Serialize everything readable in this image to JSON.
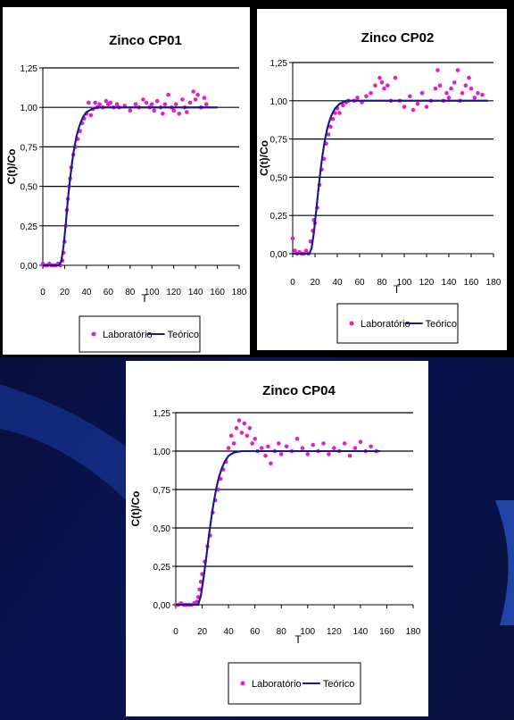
{
  "background": {
    "color": "#0a1450",
    "accent": "#1a3da8"
  },
  "colors": {
    "lab": "#e020c8",
    "theory": "#1a1a8c",
    "grid": "#000000"
  },
  "chart_data": [
    {
      "type": "scatter",
      "title": "Zinco CP01",
      "xlabel": "T",
      "ylabel": "C(t)/Co",
      "xlim": [
        0,
        180
      ],
      "ylim": [
        0,
        1.25
      ],
      "xticks": [
        "0",
        "20",
        "40",
        "60",
        "80",
        "100",
        "120",
        "140",
        "160",
        "180"
      ],
      "yticks": [
        "0,00",
        "0,25",
        "0,50",
        "0,75",
        "1,00",
        "1,25"
      ],
      "grid": true,
      "legend": "bottom",
      "series": [
        {
          "name": "Laboratório",
          "kind": "scatter",
          "points": [
            [
              0,
              0.01
            ],
            [
              2,
              0.0
            ],
            [
              4,
              0.0
            ],
            [
              6,
              0.01
            ],
            [
              8,
              0.0
            ],
            [
              10,
              0.0
            ],
            [
              12,
              0.0
            ],
            [
              14,
              0.01
            ],
            [
              16,
              0.0
            ],
            [
              18,
              0.03
            ],
            [
              19,
              0.08
            ],
            [
              20,
              0.15
            ],
            [
              21,
              0.25
            ],
            [
              22,
              0.35
            ],
            [
              23,
              0.42
            ],
            [
              24,
              0.5
            ],
            [
              25,
              0.55
            ],
            [
              26,
              0.62
            ],
            [
              28,
              0.7
            ],
            [
              30,
              0.75
            ],
            [
              32,
              0.8
            ],
            [
              34,
              0.85
            ],
            [
              36,
              0.9
            ],
            [
              38,
              0.93
            ],
            [
              40,
              0.96
            ],
            [
              42,
              1.03
            ],
            [
              44,
              0.95
            ],
            [
              46,
              0.99
            ],
            [
              48,
              1.03
            ],
            [
              50,
              1.0
            ],
            [
              52,
              1.02
            ],
            [
              55,
              1.0
            ],
            [
              58,
              1.04
            ],
            [
              60,
              1.02
            ],
            [
              62,
              1.03
            ],
            [
              65,
              1.0
            ],
            [
              68,
              1.02
            ],
            [
              70,
              1.0
            ],
            [
              75,
              1.01
            ],
            [
              80,
              0.98
            ],
            [
              85,
              1.02
            ],
            [
              88,
              1.0
            ],
            [
              92,
              1.05
            ],
            [
              95,
              1.03
            ],
            [
              98,
              1.0
            ],
            [
              100,
              1.02
            ],
            [
              102,
              0.98
            ],
            [
              105,
              1.04
            ],
            [
              108,
              1.0
            ],
            [
              110,
              0.96
            ],
            [
              112,
              1.02
            ],
            [
              115,
              1.08
            ],
            [
              118,
              1.0
            ],
            [
              120,
              0.98
            ],
            [
              122,
              1.02
            ],
            [
              125,
              0.96
            ],
            [
              128,
              1.05
            ],
            [
              130,
              1.0
            ],
            [
              132,
              0.97
            ],
            [
              135,
              1.03
            ],
            [
              138,
              1.1
            ],
            [
              140,
              1.05
            ],
            [
              142,
              1.08
            ],
            [
              145,
              1.0
            ],
            [
              148,
              1.06
            ],
            [
              150,
              1.02
            ]
          ]
        },
        {
          "name": "Teórico",
          "kind": "line",
          "points": [
            [
              0,
              0
            ],
            [
              15,
              0
            ],
            [
              17,
              0.03
            ],
            [
              19,
              0.12
            ],
            [
              21,
              0.26
            ],
            [
              23,
              0.42
            ],
            [
              25,
              0.55
            ],
            [
              27,
              0.66
            ],
            [
              29,
              0.75
            ],
            [
              31,
              0.82
            ],
            [
              33,
              0.87
            ],
            [
              35,
              0.91
            ],
            [
              37,
              0.94
            ],
            [
              40,
              0.97
            ],
            [
              45,
              0.99
            ],
            [
              50,
              1.0
            ],
            [
              160,
              1.0
            ]
          ]
        }
      ]
    },
    {
      "type": "scatter",
      "title": "Zinco CP02",
      "xlabel": "T",
      "ylabel": "C(t)/Co",
      "xlim": [
        0,
        180
      ],
      "ylim": [
        0,
        1.25
      ],
      "xticks": [
        "0",
        "20",
        "40",
        "60",
        "80",
        "100",
        "120",
        "140",
        "160",
        "180"
      ],
      "yticks": [
        "0,00",
        "0,25",
        "0,50",
        "0,75",
        "1,00",
        "1,25"
      ],
      "grid": true,
      "legend": "bottom",
      "series": [
        {
          "name": "Laboratório",
          "kind": "scatter",
          "points": [
            [
              0,
              0.1
            ],
            [
              2,
              0.02
            ],
            [
              4,
              0.0
            ],
            [
              6,
              0.01
            ],
            [
              8,
              0.0
            ],
            [
              10,
              0.0
            ],
            [
              12,
              0.02
            ],
            [
              14,
              0.0
            ],
            [
              16,
              0.08
            ],
            [
              18,
              0.15
            ],
            [
              19,
              0.22
            ],
            [
              20,
              0.2
            ],
            [
              22,
              0.3
            ],
            [
              24,
              0.45
            ],
            [
              26,
              0.55
            ],
            [
              28,
              0.62
            ],
            [
              30,
              0.72
            ],
            [
              32,
              0.78
            ],
            [
              34,
              0.83
            ],
            [
              36,
              0.88
            ],
            [
              38,
              0.92
            ],
            [
              40,
              0.95
            ],
            [
              42,
              0.92
            ],
            [
              45,
              0.97
            ],
            [
              48,
              0.99
            ],
            [
              50,
              1.0
            ],
            [
              55,
              1.0
            ],
            [
              58,
              1.02
            ],
            [
              62,
              0.99
            ],
            [
              66,
              1.03
            ],
            [
              70,
              1.05
            ],
            [
              74,
              1.1
            ],
            [
              78,
              1.15
            ],
            [
              80,
              1.12
            ],
            [
              82,
              1.08
            ],
            [
              85,
              1.1
            ],
            [
              88,
              1.0
            ],
            [
              92,
              1.15
            ],
            [
              96,
              1.0
            ],
            [
              100,
              0.96
            ],
            [
              105,
              1.03
            ],
            [
              108,
              0.94
            ],
            [
              112,
              0.98
            ],
            [
              116,
              1.05
            ],
            [
              120,
              0.96
            ],
            [
              124,
              1.0
            ],
            [
              128,
              1.08
            ],
            [
              130,
              1.2
            ],
            [
              132,
              1.1
            ],
            [
              135,
              1.0
            ],
            [
              138,
              1.05
            ],
            [
              140,
              1.02
            ],
            [
              142,
              1.08
            ],
            [
              145,
              1.12
            ],
            [
              148,
              1.2
            ],
            [
              150,
              1.0
            ],
            [
              152,
              1.05
            ],
            [
              155,
              1.1
            ],
            [
              158,
              1.15
            ],
            [
              160,
              1.08
            ],
            [
              163,
              1.02
            ],
            [
              166,
              1.05
            ],
            [
              170,
              1.04
            ]
          ]
        },
        {
          "name": "Teórico",
          "kind": "line",
          "points": [
            [
              0,
              0
            ],
            [
              15,
              0
            ],
            [
              17,
              0.04
            ],
            [
              19,
              0.14
            ],
            [
              21,
              0.28
            ],
            [
              23,
              0.42
            ],
            [
              25,
              0.55
            ],
            [
              27,
              0.66
            ],
            [
              29,
              0.75
            ],
            [
              31,
              0.82
            ],
            [
              33,
              0.87
            ],
            [
              35,
              0.91
            ],
            [
              38,
              0.95
            ],
            [
              42,
              0.98
            ],
            [
              48,
              1.0
            ],
            [
              55,
              1.0
            ],
            [
              175,
              1.0
            ]
          ]
        }
      ]
    },
    {
      "type": "scatter",
      "title": "Zinco CP04",
      "xlabel": "T",
      "ylabel": "C(t)/Co",
      "xlim": [
        0,
        180
      ],
      "ylim": [
        0,
        1.25
      ],
      "xticks": [
        "0",
        "20",
        "40",
        "60",
        "80",
        "100",
        "120",
        "140",
        "160",
        "180"
      ],
      "yticks": [
        "0,00",
        "0,25",
        "0,50",
        "0,75",
        "1,00",
        "1,25"
      ],
      "grid": true,
      "legend": "bottom",
      "series": [
        {
          "name": "Laboratório",
          "kind": "scatter",
          "points": [
            [
              0,
              0.0
            ],
            [
              2,
              0.0
            ],
            [
              4,
              0.01
            ],
            [
              6,
              0.0
            ],
            [
              8,
              0.0
            ],
            [
              10,
              0.0
            ],
            [
              12,
              0.0
            ],
            [
              14,
              0.01
            ],
            [
              16,
              0.02
            ],
            [
              17,
              0.05
            ],
            [
              18,
              0.1
            ],
            [
              19,
              0.15
            ],
            [
              20,
              0.2
            ],
            [
              22,
              0.28
            ],
            [
              24,
              0.38
            ],
            [
              26,
              0.45
            ],
            [
              28,
              0.6
            ],
            [
              30,
              0.68
            ],
            [
              32,
              0.75
            ],
            [
              34,
              0.82
            ],
            [
              36,
              0.88
            ],
            [
              38,
              0.93
            ],
            [
              40,
              1.02
            ],
            [
              42,
              1.1
            ],
            [
              44,
              1.05
            ],
            [
              46,
              1.15
            ],
            [
              48,
              1.2
            ],
            [
              50,
              1.12
            ],
            [
              52,
              1.18
            ],
            [
              54,
              1.1
            ],
            [
              56,
              1.15
            ],
            [
              58,
              1.05
            ],
            [
              60,
              1.08
            ],
            [
              62,
              1.0
            ],
            [
              65,
              1.02
            ],
            [
              68,
              0.97
            ],
            [
              70,
              1.03
            ],
            [
              72,
              0.92
            ],
            [
              75,
              1.0
            ],
            [
              78,
              1.05
            ],
            [
              80,
              0.98
            ],
            [
              84,
              1.03
            ],
            [
              88,
              1.0
            ],
            [
              92,
              1.08
            ],
            [
              96,
              1.02
            ],
            [
              100,
              0.98
            ],
            [
              104,
              1.04
            ],
            [
              108,
              1.0
            ],
            [
              112,
              1.05
            ],
            [
              116,
              0.98
            ],
            [
              120,
              1.02
            ],
            [
              124,
              1.0
            ],
            [
              128,
              1.05
            ],
            [
              132,
              0.97
            ],
            [
              136,
              1.02
            ],
            [
              140,
              1.06
            ],
            [
              144,
              1.0
            ],
            [
              148,
              1.03
            ],
            [
              152,
              1.0
            ]
          ]
        },
        {
          "name": "Teórico",
          "kind": "line",
          "points": [
            [
              0,
              0
            ],
            [
              17,
              0
            ],
            [
              19,
              0.06
            ],
            [
              21,
              0.17
            ],
            [
              23,
              0.3
            ],
            [
              25,
              0.44
            ],
            [
              27,
              0.57
            ],
            [
              29,
              0.68
            ],
            [
              31,
              0.77
            ],
            [
              33,
              0.84
            ],
            [
              35,
              0.89
            ],
            [
              37,
              0.93
            ],
            [
              40,
              0.97
            ],
            [
              44,
              0.99
            ],
            [
              50,
              1.0
            ],
            [
              155,
              1.0
            ]
          ]
        }
      ]
    }
  ]
}
